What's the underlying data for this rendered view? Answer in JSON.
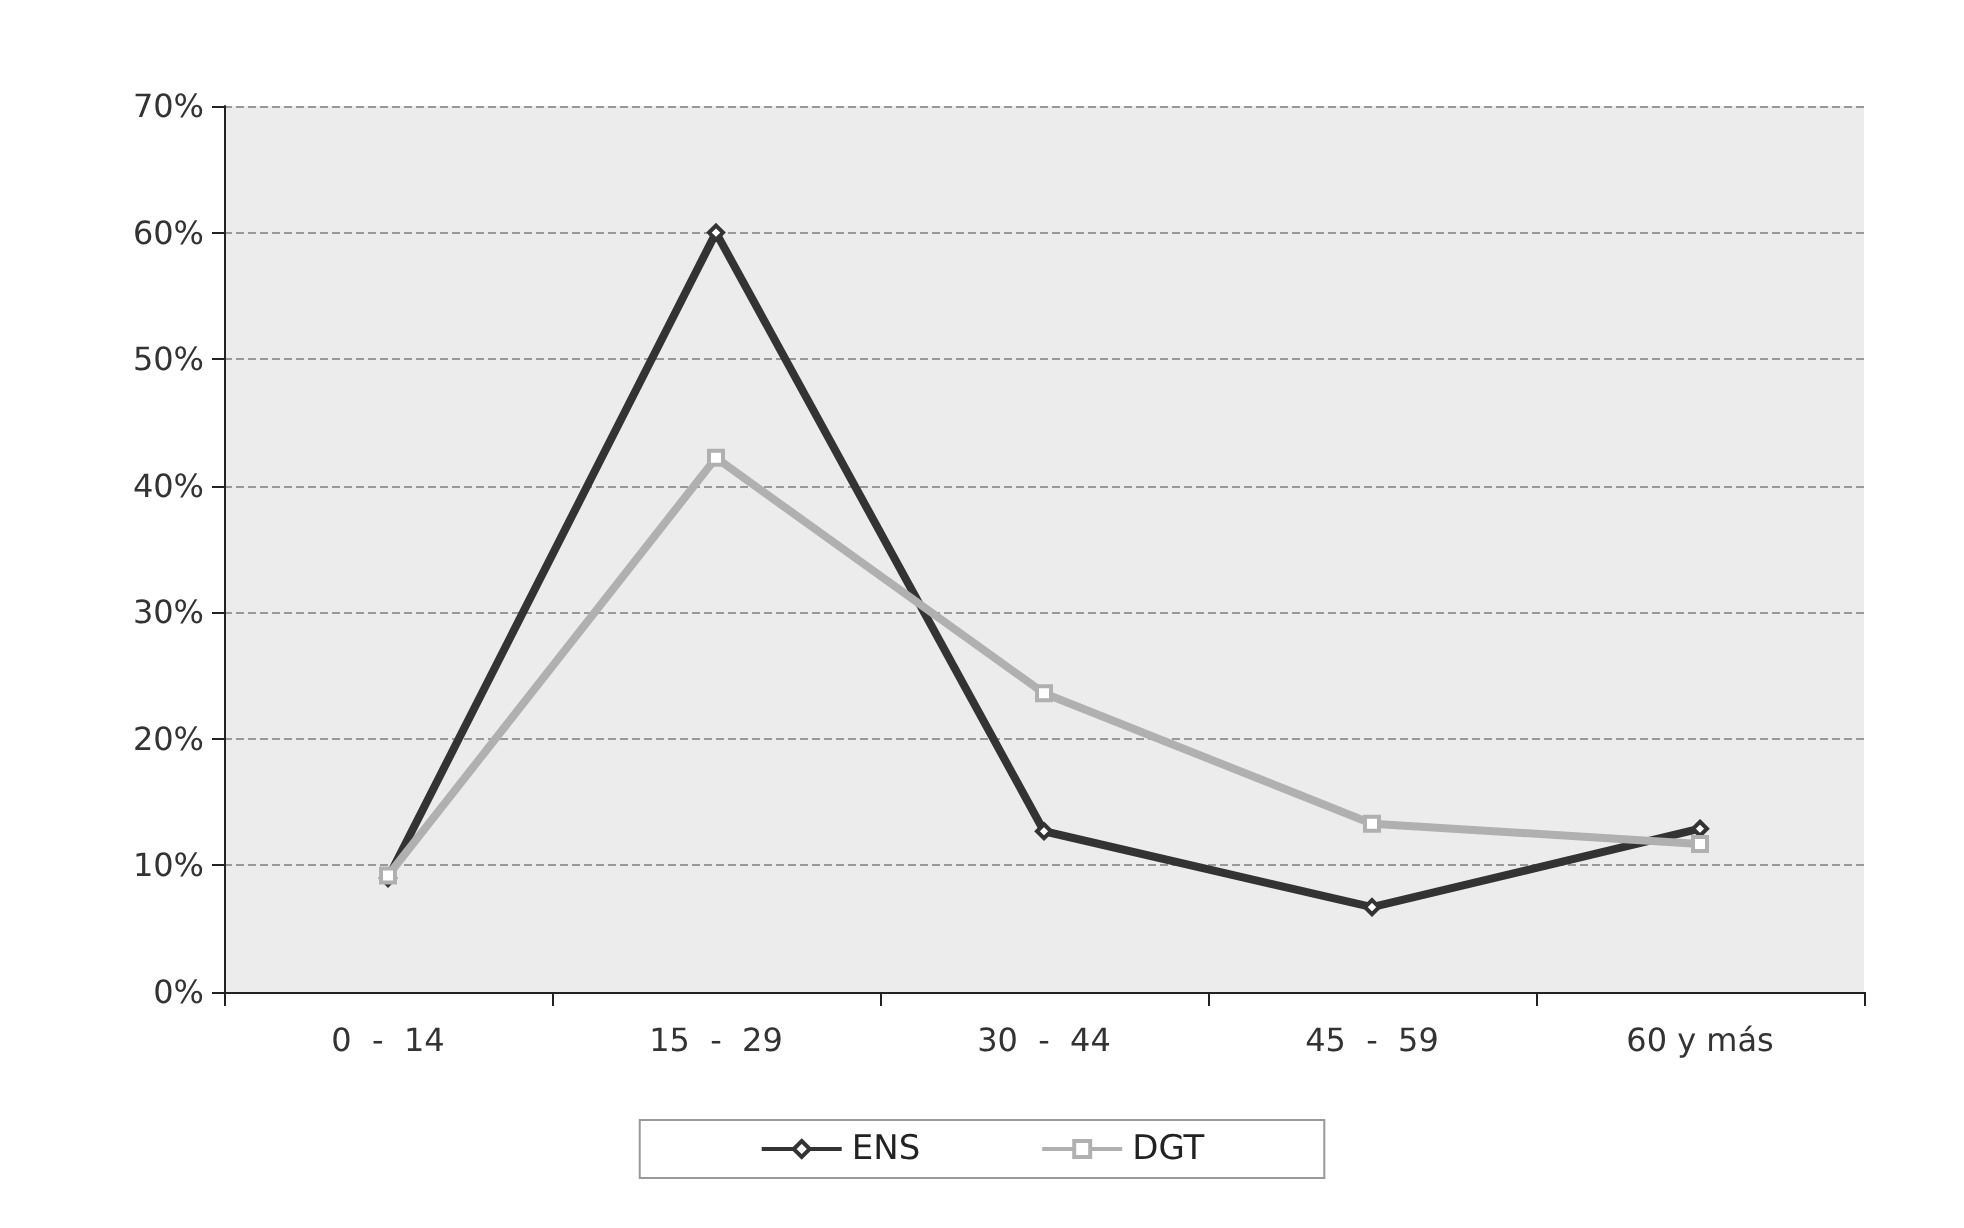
{
  "chart_data": {
    "type": "line",
    "categories": [
      "0  -  14",
      "15  -  29",
      "30  -  44",
      "45  -  59",
      "60 y más"
    ],
    "series": [
      {
        "name": "ENS",
        "color": "#333333",
        "marker": "diamond",
        "values": [
          9,
          60,
          12.7,
          6.7,
          12.9
        ]
      },
      {
        "name": "DGT",
        "color": "#b0b0b0",
        "marker": "square",
        "values": [
          9.2,
          42.2,
          23.6,
          13.3,
          11.7
        ]
      }
    ],
    "ylim": [
      0,
      70
    ],
    "yticks": [
      {
        "value": 0,
        "label": "0%"
      },
      {
        "value": 10,
        "label": "10%"
      },
      {
        "value": 20,
        "label": "20%"
      },
      {
        "value": 30,
        "label": "30%"
      },
      {
        "value": 40,
        "label": "40%"
      },
      {
        "value": 50,
        "label": "50%"
      },
      {
        "value": 60,
        "label": "60%"
      },
      {
        "value": 70,
        "label": "70%"
      }
    ],
    "grid": "y",
    "legend": "bottom",
    "line_style": "solid"
  }
}
